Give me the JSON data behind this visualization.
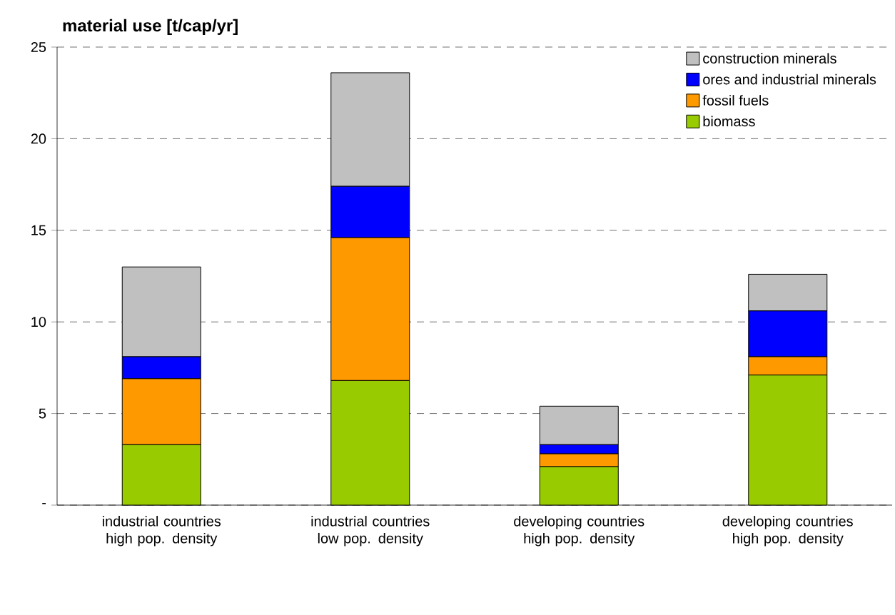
{
  "chart_data": {
    "type": "bar",
    "stacked": true,
    "title": "material use [t/cap/yr]",
    "categories": [
      "industrial countries high pop. density",
      "industrial countries low pop. density",
      "developing countries high pop. density",
      "developing countries high pop. density"
    ],
    "series": [
      {
        "name": "biomass",
        "color": "#99cc00",
        "values": [
          3.3,
          6.8,
          2.1,
          7.1
        ]
      },
      {
        "name": "fossil fuels",
        "color": "#ff9900",
        "values": [
          3.6,
          7.8,
          0.7,
          1.0
        ]
      },
      {
        "name": "ores and industrial minerals",
        "color": "#0000ff",
        "values": [
          1.2,
          2.8,
          0.5,
          2.5
        ]
      },
      {
        "name": "construction minerals",
        "color": "#c0c0c0",
        "values": [
          4.9,
          6.2,
          2.1,
          2.0
        ]
      }
    ],
    "ylim": [
      0,
      25
    ],
    "yticks": [
      {
        "value": 0,
        "label": "-"
      },
      5,
      10,
      15,
      20,
      25
    ],
    "grid": "y",
    "legend": "top right"
  }
}
